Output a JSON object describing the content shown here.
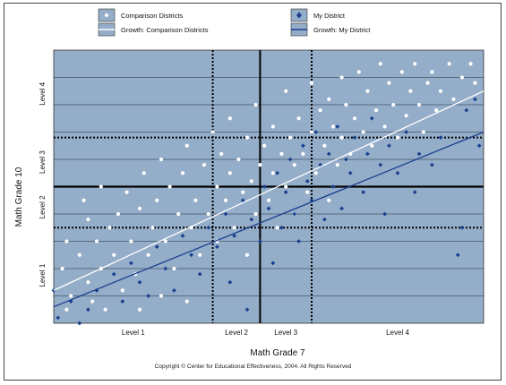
{
  "chart_data": {
    "type": "scatter",
    "xlabel": "Math Grade 7",
    "ylabel": "Math Grade 10",
    "x_levels": [
      "Level 1",
      "Level 2",
      "Level 3",
      "Level 4"
    ],
    "y_levels": [
      "Level 1",
      "Level 2",
      "Level 3",
      "Level 4"
    ],
    "xlim": [
      0,
      100
    ],
    "ylim": [
      0,
      100
    ],
    "level_cuts_x": [
      37,
      48,
      60
    ],
    "level_cuts_y": [
      35,
      50,
      68
    ],
    "legend": {
      "placement": "top",
      "entries": [
        {
          "label": "Comparison Districts",
          "kind": "points",
          "color": "#ffffff"
        },
        {
          "label": "Growth: Comparison Districts",
          "kind": "line",
          "color": "#ffffff"
        },
        {
          "label": "My District",
          "kind": "points",
          "color": "#1a3f8f"
        },
        {
          "label": "Growth: My District",
          "kind": "line",
          "color": "#1a3f8f"
        }
      ]
    },
    "series": [
      {
        "name": "Comparison Districts",
        "color": "#ffffff",
        "points": [
          [
            2,
            20
          ],
          [
            3,
            5
          ],
          [
            3,
            30
          ],
          [
            4,
            10
          ],
          [
            6,
            25
          ],
          [
            7,
            45
          ],
          [
            8,
            38
          ],
          [
            8,
            15
          ],
          [
            9,
            8
          ],
          [
            10,
            30
          ],
          [
            11,
            20
          ],
          [
            11,
            50
          ],
          [
            12,
            5
          ],
          [
            13,
            35
          ],
          [
            14,
            25
          ],
          [
            15,
            40
          ],
          [
            16,
            12
          ],
          [
            17,
            48
          ],
          [
            18,
            30
          ],
          [
            19,
            18
          ],
          [
            20,
            5
          ],
          [
            20,
            42
          ],
          [
            21,
            55
          ],
          [
            22,
            25
          ],
          [
            23,
            35
          ],
          [
            24,
            45
          ],
          [
            25,
            10
          ],
          [
            25,
            60
          ],
          [
            26,
            30
          ],
          [
            27,
            50
          ],
          [
            28,
            20
          ],
          [
            29,
            40
          ],
          [
            30,
            55
          ],
          [
            31,
            8
          ],
          [
            31,
            65
          ],
          [
            32,
            35
          ],
          [
            33,
            45
          ],
          [
            34,
            25
          ],
          [
            35,
            58
          ],
          [
            36,
            40
          ],
          [
            37,
            70
          ],
          [
            38,
            50
          ],
          [
            38,
            30
          ],
          [
            39,
            62
          ],
          [
            40,
            45
          ],
          [
            41,
            55
          ],
          [
            41,
            75
          ],
          [
            42,
            35
          ],
          [
            43,
            60
          ],
          [
            44,
            48
          ],
          [
            45,
            68
          ],
          [
            45,
            25
          ],
          [
            46,
            52
          ],
          [
            47,
            40
          ],
          [
            47,
            80
          ],
          [
            48,
            58
          ],
          [
            49,
            65
          ],
          [
            50,
            45
          ],
          [
            51,
            72
          ],
          [
            51,
            55
          ],
          [
            52,
            35
          ],
          [
            53,
            62
          ],
          [
            54,
            50
          ],
          [
            54,
            85
          ],
          [
            55,
            68
          ],
          [
            56,
            40
          ],
          [
            56,
            58
          ],
          [
            57,
            75
          ],
          [
            58,
            62
          ],
          [
            59,
            48
          ],
          [
            60,
            70
          ],
          [
            60,
            88
          ],
          [
            61,
            55
          ],
          [
            62,
            78
          ],
          [
            63,
            65
          ],
          [
            64,
            45
          ],
          [
            64,
            82
          ],
          [
            65,
            72
          ],
          [
            66,
            58
          ],
          [
            67,
            90
          ],
          [
            67,
            68
          ],
          [
            68,
            80
          ],
          [
            69,
            62
          ],
          [
            70,
            75
          ],
          [
            71,
            92
          ],
          [
            72,
            70
          ],
          [
            73,
            85
          ],
          [
            74,
            65
          ],
          [
            75,
            78
          ],
          [
            76,
            95
          ],
          [
            77,
            72
          ],
          [
            78,
            88
          ],
          [
            79,
            80
          ],
          [
            80,
            68
          ],
          [
            81,
            92
          ],
          [
            82,
            76
          ],
          [
            83,
            85
          ],
          [
            84,
            95
          ],
          [
            85,
            80
          ],
          [
            86,
            70
          ],
          [
            87,
            88
          ],
          [
            88,
            92
          ],
          [
            89,
            78
          ],
          [
            90,
            85
          ],
          [
            92,
            95
          ],
          [
            93,
            82
          ],
          [
            95,
            90
          ],
          [
            97,
            95
          ],
          [
            98,
            88
          ]
        ]
      },
      {
        "name": "My District",
        "color": "#1a3f8f",
        "points": [
          [
            0,
            12
          ],
          [
            1,
            2
          ],
          [
            4,
            8
          ],
          [
            6,
            0
          ],
          [
            8,
            5
          ],
          [
            10,
            12
          ],
          [
            14,
            18
          ],
          [
            16,
            8
          ],
          [
            18,
            22
          ],
          [
            20,
            15
          ],
          [
            22,
            10
          ],
          [
            24,
            28
          ],
          [
            26,
            20
          ],
          [
            28,
            12
          ],
          [
            30,
            32
          ],
          [
            32,
            25
          ],
          [
            34,
            18
          ],
          [
            36,
            35
          ],
          [
            38,
            28
          ],
          [
            40,
            40
          ],
          [
            41,
            15
          ],
          [
            42,
            32
          ],
          [
            44,
            45
          ],
          [
            45,
            5
          ],
          [
            46,
            38
          ],
          [
            48,
            30
          ],
          [
            49,
            50
          ],
          [
            50,
            42
          ],
          [
            51,
            22
          ],
          [
            52,
            55
          ],
          [
            53,
            35
          ],
          [
            54,
            48
          ],
          [
            55,
            60
          ],
          [
            56,
            40
          ],
          [
            57,
            30
          ],
          [
            58,
            65
          ],
          [
            59,
            52
          ],
          [
            60,
            45
          ],
          [
            61,
            70
          ],
          [
            62,
            58
          ],
          [
            63,
            38
          ],
          [
            64,
            62
          ],
          [
            65,
            50
          ],
          [
            66,
            72
          ],
          [
            67,
            42
          ],
          [
            68,
            60
          ],
          [
            69,
            55
          ],
          [
            70,
            68
          ],
          [
            72,
            48
          ],
          [
            73,
            62
          ],
          [
            74,
            75
          ],
          [
            76,
            58
          ],
          [
            77,
            40
          ],
          [
            78,
            65
          ],
          [
            80,
            55
          ],
          [
            82,
            70
          ],
          [
            84,
            48
          ],
          [
            85,
            62
          ],
          [
            88,
            58
          ],
          [
            90,
            68
          ],
          [
            94,
            25
          ],
          [
            95,
            35
          ],
          [
            96,
            78
          ],
          [
            98,
            82
          ],
          [
            99,
            65
          ]
        ]
      },
      {
        "name": "Growth: Comparison Districts",
        "color": "#ffffff",
        "line": [
          [
            0,
            12
          ],
          [
            100,
            85
          ]
        ]
      },
      {
        "name": "Growth: My District",
        "color": "#1a3f8f",
        "line": [
          [
            0,
            6
          ],
          [
            100,
            70
          ]
        ]
      }
    ],
    "grid": true
  },
  "copyright": "Copyright © Center for Educational Effectiveness, 2004.  All Rights Reserved"
}
